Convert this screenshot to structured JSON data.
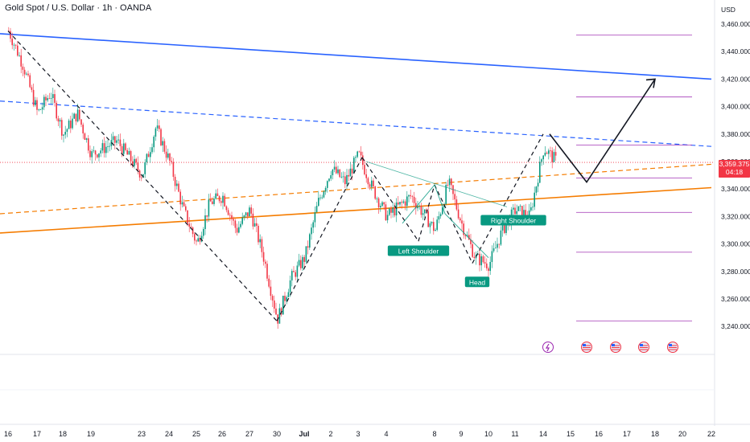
{
  "header": {
    "title": "Gold Spot / U.S. Dollar · 1h · OANDA",
    "currency": "USD"
  },
  "current_price": {
    "price": "3,359.375",
    "countdown": "04:18",
    "color": "#f23645"
  },
  "colors": {
    "up": "#089981",
    "down": "#f23645",
    "resistance_line": "#2962ff",
    "support_line": "#f57c00",
    "target_levels": "#9c27b0",
    "annotation_bg": "#089981"
  },
  "chart_data": {
    "type": "candlestick",
    "title": "Gold Spot / U.S. Dollar · 1h · OANDA",
    "ylabel": "USD",
    "ylim": [
      3230,
      3470
    ],
    "y_ticks": [
      "3,460.000",
      "3,440.000",
      "3,420.000",
      "3,400.000",
      "3,380.000",
      "3,360.000",
      "3,340.000",
      "3,320.000",
      "3,300.000",
      "3,280.000",
      "3,260.000",
      "3,240.000"
    ],
    "x_ticks": [
      "16",
      "17",
      "18",
      "19",
      "23",
      "24",
      "25",
      "26",
      "27",
      "30",
      "Jul",
      "2",
      "3",
      "4",
      "8",
      "9",
      "10",
      "11",
      "14",
      "15",
      "16",
      "17",
      "18",
      "20",
      "22"
    ],
    "price_path": [
      [
        "16",
        3455
      ],
      [
        "16",
        3430
      ],
      [
        "17",
        3395
      ],
      [
        "17",
        3410
      ],
      [
        "18",
        3380
      ],
      [
        "18",
        3395
      ],
      [
        "19",
        3365
      ],
      [
        "19",
        3375
      ],
      [
        "23",
        3350
      ],
      [
        "23",
        3385
      ],
      [
        "24",
        3360
      ],
      [
        "24",
        3325
      ],
      [
        "25",
        3300
      ],
      [
        "25",
        3330
      ],
      [
        "26",
        3335
      ],
      [
        "26",
        3310
      ],
      [
        "27",
        3325
      ],
      [
        "27",
        3290
      ],
      [
        "30",
        3245
      ],
      [
        "30",
        3275
      ],
      [
        "Jul",
        3290
      ],
      [
        "Jul",
        3330
      ],
      [
        "2",
        3355
      ],
      [
        "2",
        3345
      ],
      [
        "3",
        3365
      ],
      [
        "3",
        3340
      ],
      [
        "4",
        3320
      ],
      [
        "4",
        3335
      ],
      [
        "8",
        3310
      ],
      [
        "8",
        3345
      ],
      [
        "9",
        3315
      ],
      [
        "9",
        3290
      ],
      [
        "10",
        3285
      ],
      [
        "10",
        3310
      ],
      [
        "11",
        3325
      ],
      [
        "11",
        3320
      ],
      [
        "14",
        3370
      ],
      [
        "14",
        3359.375
      ]
    ],
    "annotations": [
      {
        "label": "Left Shoulder",
        "x": "4",
        "y": 3303
      },
      {
        "label": "Head",
        "x": "9",
        "y": 3285
      },
      {
        "label": "Right Shoulder",
        "x": "11",
        "y": 3310
      }
    ],
    "trendlines": [
      {
        "name": "descending resistance",
        "from": [
          "16",
          3453
        ],
        "to": [
          "22",
          3420
        ]
      },
      {
        "name": "descending resistance (dashed)",
        "from": [
          "16",
          3404
        ],
        "to": [
          "22",
          3371
        ]
      },
      {
        "name": "rising support",
        "from": [
          "16",
          3308
        ],
        "to": [
          "22",
          3341
        ]
      },
      {
        "name": "rising support (dashed)",
        "from": [
          "16",
          3322
        ],
        "to": [
          "22",
          3358
        ]
      }
    ],
    "projection": [
      [
        "14",
        3380
      ],
      [
        "15",
        3345
      ],
      [
        "18",
        3420
      ]
    ],
    "target_levels": [
      3452,
      3407,
      3372,
      3348,
      3323,
      3294,
      3244
    ],
    "current_price_line": 3359.375
  }
}
